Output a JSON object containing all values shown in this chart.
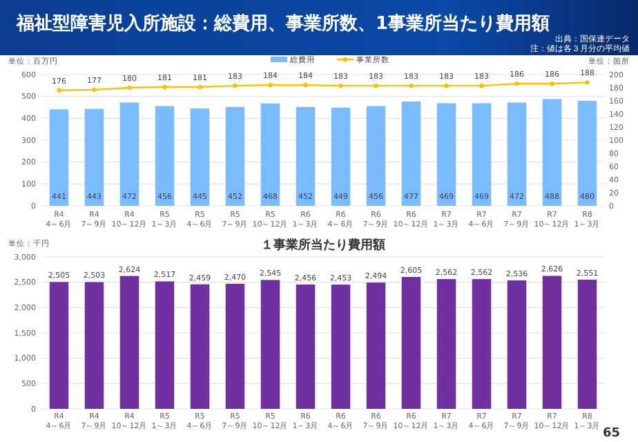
{
  "chart_data": [
    {
      "type": "bar",
      "title": "福祉型障害児入所施設：総費用、事業所数、1事業所当たり費用額",
      "annotations": [
        "出典：国保連データ",
        "注：値は各３月分の平均値"
      ],
      "categories": [
        "R4\n4～6月",
        "R4\n7～9月",
        "R4\n10～12月",
        "R5\n1～3月",
        "R5\n4～6月",
        "R5\n7～9月",
        "R5\n10～12月",
        "R6\n1～3月",
        "R6\n4～6月",
        "R6\n7～9月",
        "R6\n10～12月",
        "R7\n1～3月",
        "R7\n4～6月",
        "R7\n7～9月",
        "R7\n10～12月",
        "R8\n1～3月"
      ],
      "ylabel": "単位：百万円",
      "y2label": "単位：箇所",
      "ylim": [
        0,
        600
      ],
      "yticks": [
        0,
        100,
        200,
        300,
        400,
        500,
        600
      ],
      "y2lim": [
        0,
        200
      ],
      "y2ticks": [
        0,
        20,
        40,
        60,
        80,
        100,
        120,
        140,
        160,
        180,
        200
      ],
      "series": [
        {
          "name": "総費用",
          "type": "bar",
          "color": "#7abcff",
          "values": [
            441,
            443,
            472,
            456,
            445,
            452,
            468,
            452,
            449,
            456,
            477,
            469,
            469,
            472,
            488,
            480
          ]
        },
        {
          "name": "事業所数",
          "type": "line",
          "axis": "y2",
          "color": "#ffc000",
          "values": [
            176,
            177,
            180,
            181,
            181,
            183,
            184,
            184,
            183,
            183,
            183,
            183,
            183,
            186,
            186,
            188
          ]
        }
      ],
      "data_labels": true,
      "grid": "y",
      "legend": "top",
      "marker": "circle"
    },
    {
      "type": "bar",
      "title": "１事業所当たり費用額",
      "annotations": [
        "65"
      ],
      "categories": [
        "R4\n4～6月",
        "R4\n7～9月",
        "R4\n10～12月",
        "R5\n1～3月",
        "R5\n4～6月",
        "R5\n7～9月",
        "R5\n10～12月",
        "R6\n1～3月",
        "R6\n4～6月",
        "R6\n7～9月",
        "R6\n10～12月",
        "R7\n1～3月",
        "R7\n4～6月",
        "R7\n7～9月",
        "R7\n10～12月",
        "R8\n1～3月"
      ],
      "ylabel": "単位：千円",
      "ylim": [
        0,
        3000
      ],
      "yticks": [
        0,
        500,
        {
          "value": 1000,
          "label": "1,000"
        },
        {
          "value": 1500,
          "label": "1,500"
        },
        {
          "value": 2000,
          "label": "2,000"
        },
        {
          "value": 2500,
          "label": "2,500"
        },
        {
          "value": 3000,
          "label": "3,000"
        }
      ],
      "color": "#7030a0",
      "values": [
        2505,
        2503,
        2624,
        2517,
        2459,
        2470,
        2545,
        2456,
        2453,
        2494,
        2605,
        2562,
        2562,
        2536,
        2626,
        2551
      ],
      "value_labels": [
        "2,505",
        "2,503",
        "2,624",
        "2,517",
        "2,459",
        "2,470",
        "2,545",
        "2,456",
        "2,453",
        "2,494",
        "2,605",
        "2,562",
        "2,562",
        "2,536",
        "2,626",
        "2,551"
      ],
      "grid": "y"
    }
  ]
}
